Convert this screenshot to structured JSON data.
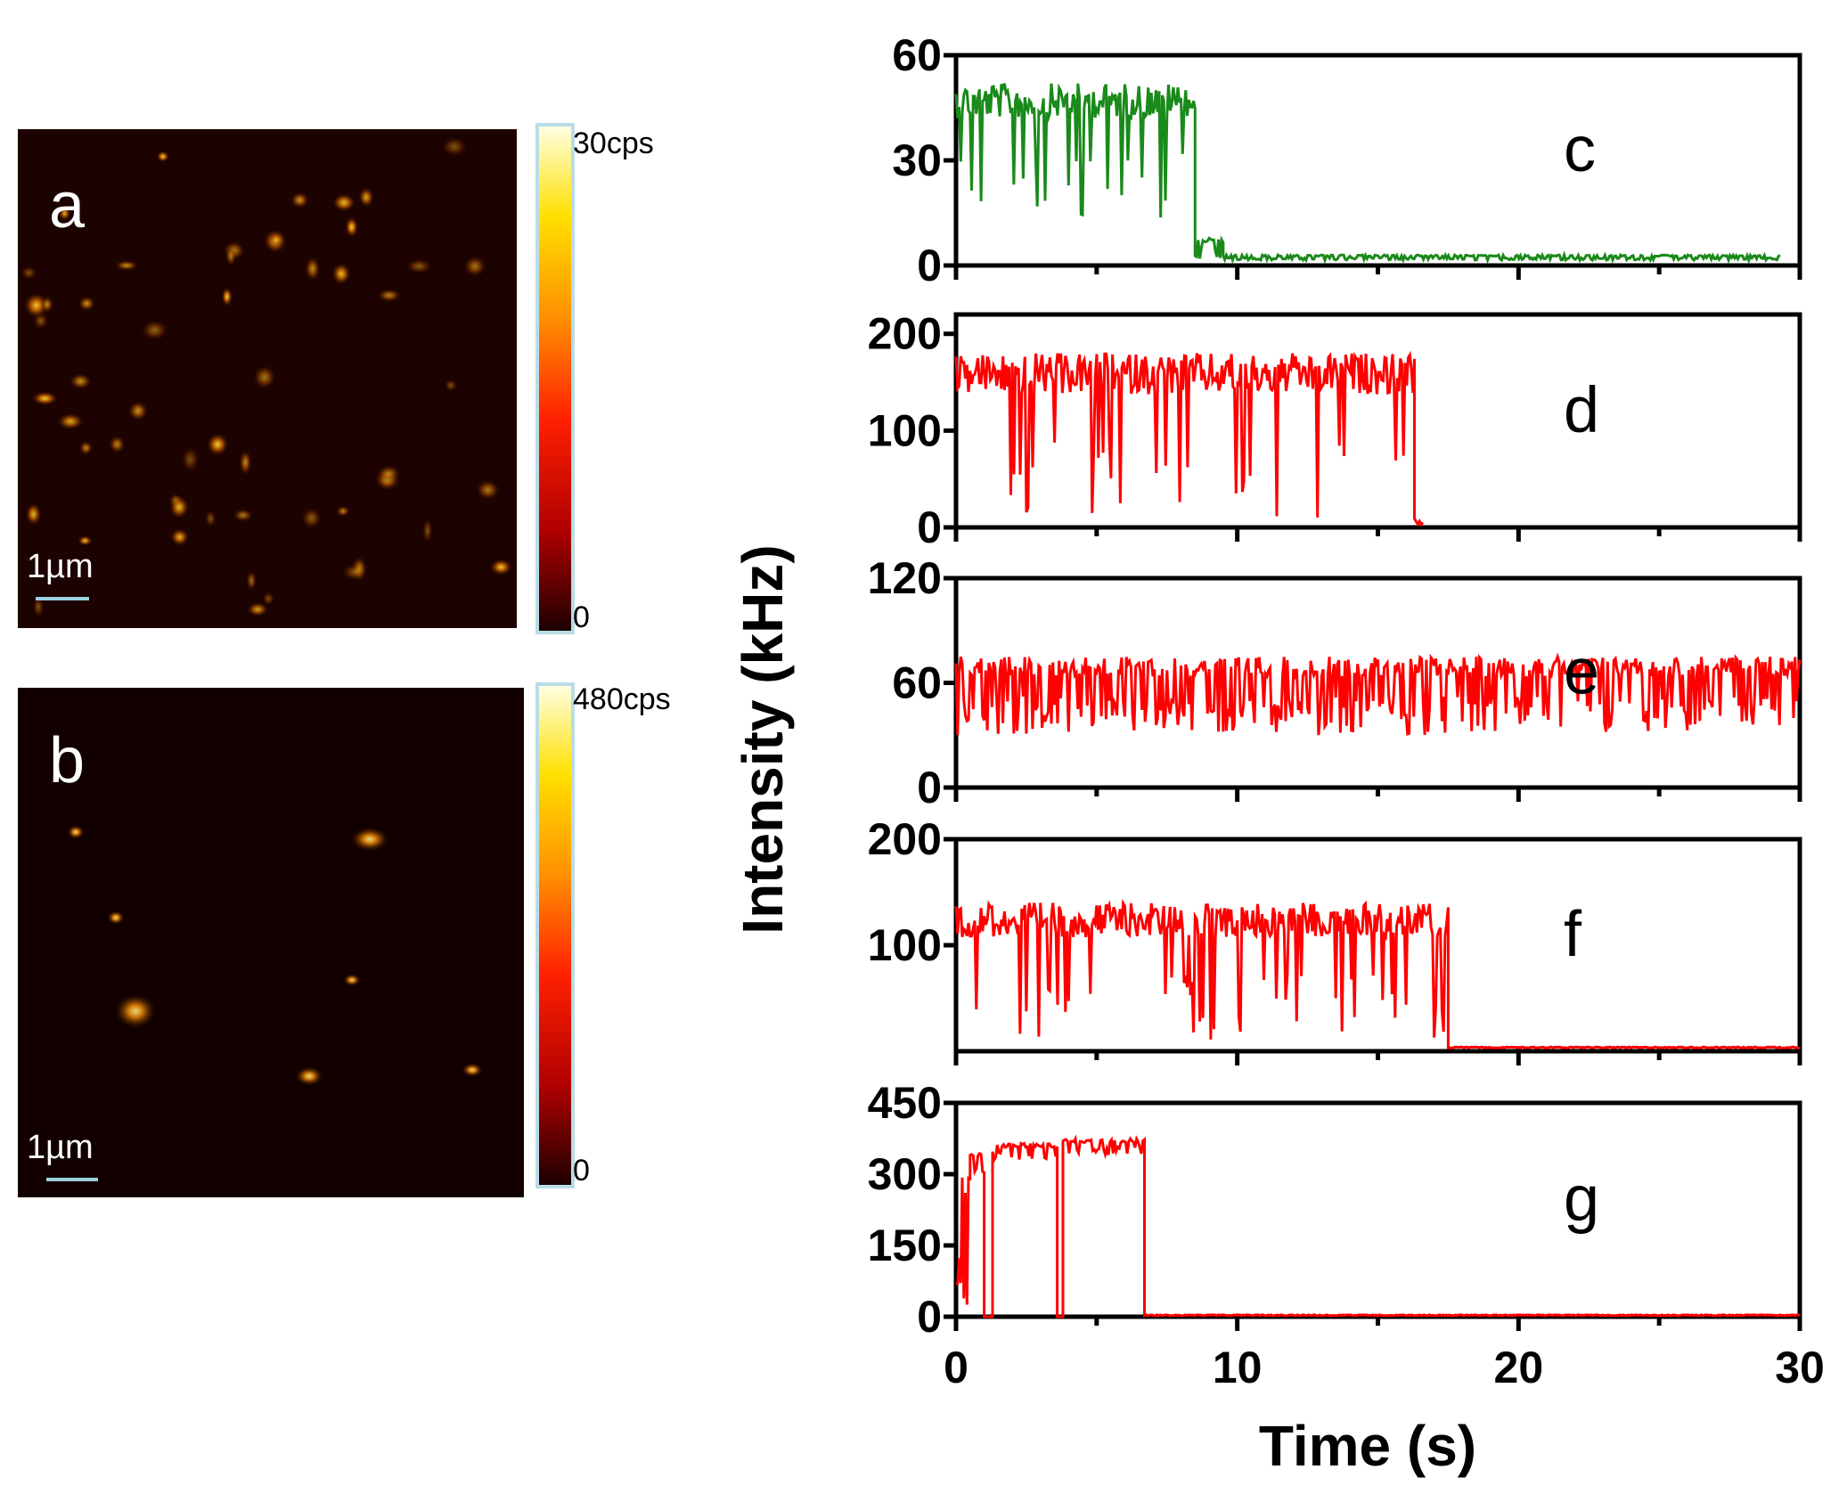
{
  "chart_data": {
    "type": "multi-panel",
    "images": [
      {
        "label": "a",
        "scale_bar": "1µm",
        "colorbar_max": "30cps",
        "colorbar_min": "0",
        "description_colormap": [
          "#1a0000",
          "#c00000",
          "#ff4000",
          "#ff9000",
          "#ffe000",
          "#ffffe6"
        ]
      },
      {
        "label": "b",
        "scale_bar": "1µm",
        "colorbar_max": "480cps",
        "colorbar_min": "0",
        "description_colormap": [
          "#1a0000",
          "#c00000",
          "#ff4000",
          "#ff9000",
          "#ffe000",
          "#ffffe6"
        ]
      }
    ],
    "traces": {
      "type": "line",
      "xlabel": "Time (s)",
      "ylabel": "Intensity (kHz)",
      "xlim": [
        0,
        30
      ],
      "xticks": [
        "0",
        "10",
        "20",
        "30"
      ],
      "panels": [
        {
          "label": "c",
          "color": "#1a8a1a",
          "ylim": [
            0,
            60
          ],
          "yticks": [
            "60",
            "30",
            "0"
          ],
          "ytick_values": [
            60,
            30,
            0
          ],
          "segments": [
            {
              "t0": 0,
              "t1": 8.5,
              "high": 52,
              "low": 12,
              "dip_rate": 0.18
            },
            {
              "t0": 8.5,
              "t1": 9.5,
              "high": 8,
              "low": 2,
              "dip_rate": 0.5
            },
            {
              "t0": 9.5,
              "t1": 29.3,
              "high": 3,
              "low": 1.5,
              "dip_rate": 0.5
            }
          ]
        },
        {
          "label": "d",
          "color": "#ff0000",
          "ylim": [
            0,
            220
          ],
          "yticks": [
            "200",
            "100",
            "0"
          ],
          "ytick_values": [
            200,
            100,
            0
          ],
          "segments": [
            {
              "t0": 0,
              "t1": 16.3,
              "high": 180,
              "low": 10,
              "dip_rate": 0.12
            },
            {
              "t0": 16.3,
              "t1": 16.6,
              "high": 10,
              "low": 3,
              "dip_rate": 0.5
            }
          ]
        },
        {
          "label": "e",
          "color": "#ff0000",
          "ylim": [
            0,
            120
          ],
          "yticks": [
            "120",
            "60",
            "0"
          ],
          "ytick_values": [
            120,
            60,
            0
          ],
          "segments": [
            {
              "t0": 0,
              "t1": 30,
              "high": 75,
              "low": 30,
              "dip_rate": 0.4
            }
          ]
        },
        {
          "label": "f",
          "color": "#ff0000",
          "ylim": [
            0,
            200
          ],
          "yticks": [
            "200",
            "100"
          ],
          "ytick_values": [
            200,
            100
          ],
          "segments": [
            {
              "t0": 0,
              "t1": 17.5,
              "high": 140,
              "low": 10,
              "dip_rate": 0.14
            },
            {
              "t0": 17.5,
              "t1": 30,
              "high": 4,
              "low": 3,
              "dip_rate": 0.5
            }
          ]
        },
        {
          "label": "g",
          "color": "#ff0000",
          "ylim": [
            0,
            450
          ],
          "yticks": [
            "450",
            "300",
            "150",
            "0"
          ],
          "ytick_values": [
            450,
            300,
            150,
            0
          ],
          "segments": [
            {
              "t0": 0,
              "t1": 0.5,
              "high": 300,
              "low": 10,
              "dip_rate": 0.5
            },
            {
              "t0": 0.5,
              "t1": 1.0,
              "high": 350,
              "low": 300,
              "dip_rate": 0.3
            },
            {
              "t0": 1.0,
              "t1": 1.3,
              "high": 0,
              "low": 0,
              "dip_rate": 0
            },
            {
              "t0": 1.3,
              "t1": 3.6,
              "high": 365,
              "low": 330,
              "dip_rate": 0.3
            },
            {
              "t0": 3.6,
              "t1": 3.8,
              "high": 0,
              "low": 0,
              "dip_rate": 0
            },
            {
              "t0": 3.8,
              "t1": 6.7,
              "high": 375,
              "low": 340,
              "dip_rate": 0.3
            },
            {
              "t0": 6.7,
              "t1": 30,
              "high": 4,
              "low": 2,
              "dip_rate": 0.5
            }
          ]
        }
      ]
    }
  }
}
